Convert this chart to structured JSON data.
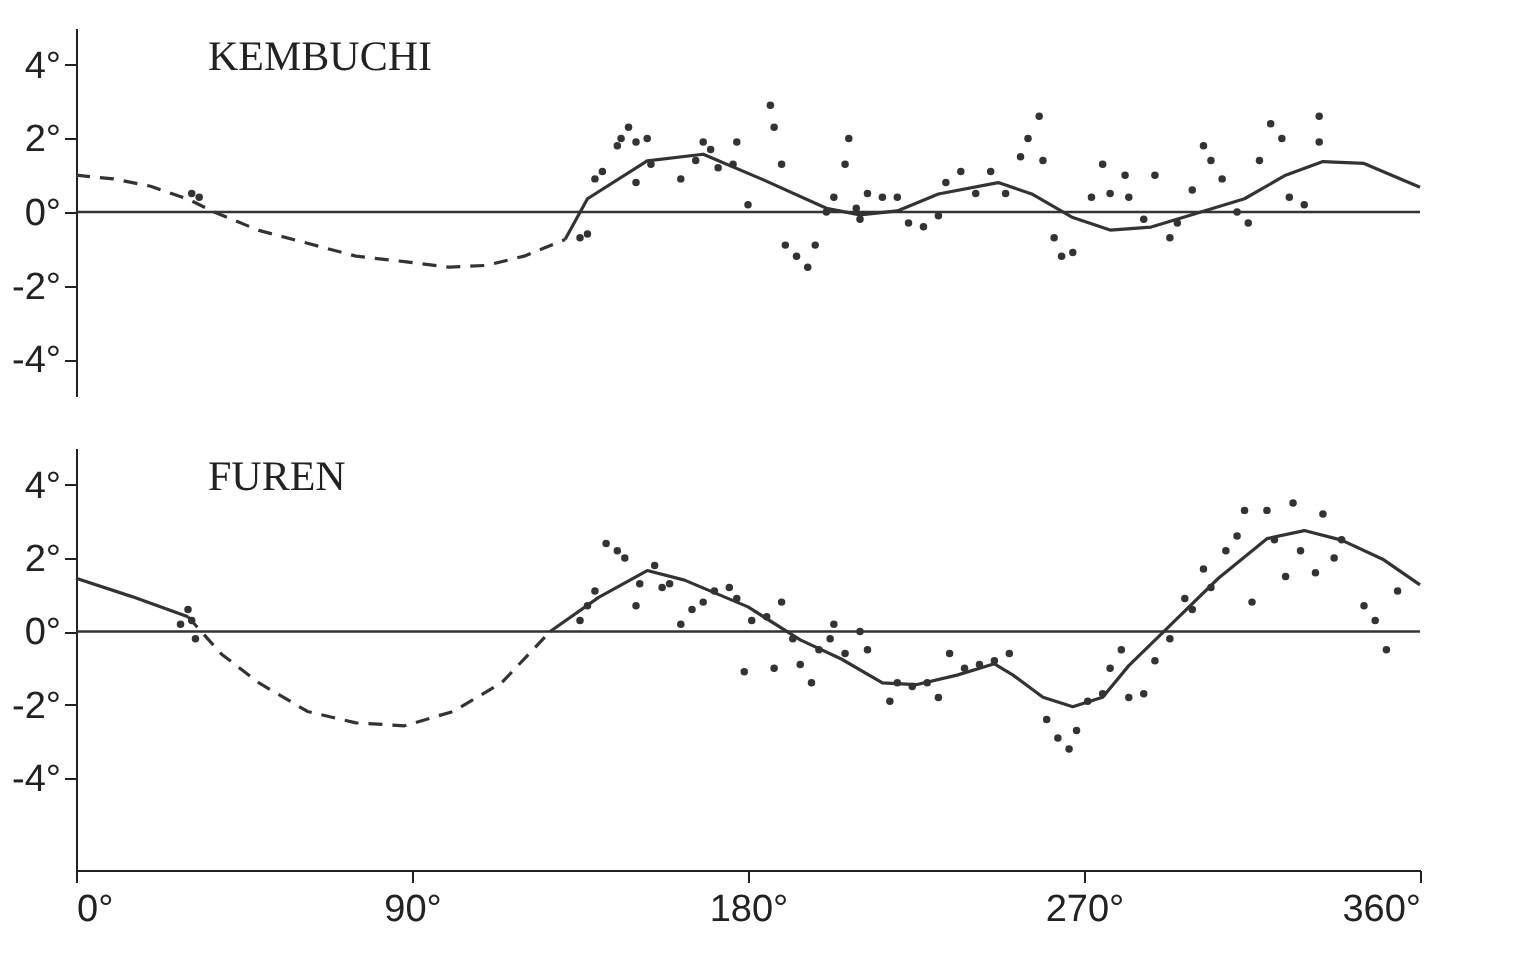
{
  "chart_data": [
    {
      "type": "line",
      "title": "KEMBUCHI",
      "xlim": [
        0,
        360
      ],
      "ylim": [
        -5,
        5
      ],
      "yticks": [
        {
          "value": 4,
          "label": "4°"
        },
        {
          "value": 2,
          "label": "2°"
        },
        {
          "value": 0,
          "label": "0°"
        },
        {
          "value": -2,
          "label": "-2°"
        },
        {
          "value": -4,
          "label": "-4°"
        }
      ],
      "tick_labels": "y",
      "grid": false,
      "ref_lines": [
        {
          "axis": "y",
          "value": 0,
          "color": "#333333"
        }
      ],
      "series": [
        {
          "type": "line",
          "line_style": "dashed",
          "color": "#333333",
          "x": [
            0,
            10,
            20,
            30,
            37,
            49,
            62,
            75,
            88,
            100,
            110,
            120,
            131
          ],
          "values": [
            1.0,
            0.9,
            0.7,
            0.35,
            0,
            -0.5,
            -0.85,
            -1.2,
            -1.35,
            -1.5,
            -1.45,
            -1.2,
            -0.75
          ]
        },
        {
          "type": "line",
          "line_style": "solid",
          "color": "#333333",
          "x": [
            131,
            137,
            153,
            168,
            184,
            201,
            210,
            220,
            231,
            247,
            256,
            267,
            277,
            288,
            298,
            313,
            324,
            334,
            345,
            360
          ],
          "values": [
            -0.75,
            0.36,
            1.39,
            1.57,
            0.88,
            0.1,
            -0.08,
            0.03,
            0.49,
            0.8,
            0.49,
            -0.15,
            -0.49,
            -0.41,
            -0.1,
            0.36,
            1.0,
            1.37,
            1.32,
            0.67
          ]
        },
        {
          "type": "scatter",
          "marker": "circle",
          "color": "#333333",
          "x": [
            31,
            33,
            135,
            137,
            139,
            141,
            145,
            146,
            148,
            150,
            153,
            150,
            154,
            162,
            166,
            168,
            170,
            172,
            176,
            177,
            180,
            186,
            187,
            189,
            190,
            193,
            196,
            198,
            201,
            203,
            206,
            207,
            209,
            210,
            212,
            216,
            220,
            223,
            227,
            231,
            233,
            237,
            241,
            245,
            249,
            253,
            255,
            258,
            259,
            262,
            264,
            267,
            272,
            275,
            277,
            281,
            282,
            286,
            289,
            293,
            295,
            299,
            302,
            304,
            307,
            311,
            314,
            317,
            320,
            323,
            325,
            329,
            333,
            333
          ],
          "values": [
            0.5,
            0.4,
            -0.7,
            -0.6,
            0.9,
            1.1,
            1.8,
            2.0,
            2.3,
            1.9,
            2.0,
            0.8,
            1.3,
            0.9,
            1.4,
            1.9,
            1.7,
            1.2,
            1.3,
            1.9,
            0.2,
            2.9,
            2.3,
            1.3,
            -0.9,
            -1.2,
            -1.5,
            -0.9,
            0.0,
            0.4,
            1.3,
            2.0,
            0.1,
            -0.2,
            0.5,
            0.4,
            0.4,
            -0.3,
            -0.4,
            -0.1,
            0.8,
            1.1,
            0.5,
            1.1,
            0.5,
            1.5,
            2.0,
            2.6,
            1.4,
            -0.7,
            -1.2,
            -1.1,
            0.4,
            1.3,
            0.5,
            1.0,
            0.4,
            -0.2,
            1.0,
            -0.7,
            -0.3,
            0.6,
            1.8,
            1.4,
            0.9,
            0.0,
            -0.3,
            1.4,
            2.4,
            2.0,
            0.4,
            0.2,
            2.6,
            1.9
          ]
        }
      ]
    },
    {
      "type": "line",
      "title": "FUREN",
      "xlim": [
        0,
        360
      ],
      "ylim": [
        -6.5,
        5
      ],
      "xticks": [
        {
          "value": 0,
          "label": "0°"
        },
        {
          "value": 90,
          "label": "90°"
        },
        {
          "value": 180,
          "label": "180°"
        },
        {
          "value": 270,
          "label": "270°"
        },
        {
          "value": 360,
          "label": "360°"
        }
      ],
      "yticks": [
        {
          "value": 4,
          "label": "4°"
        },
        {
          "value": 2,
          "label": "2°"
        },
        {
          "value": 0,
          "label": "0°"
        },
        {
          "value": -2,
          "label": "-2°"
        },
        {
          "value": -4,
          "label": "-4°"
        }
      ],
      "grid": false,
      "ref_lines": [
        {
          "axis": "y",
          "value": 0,
          "color": "#333333"
        }
      ],
      "series": [
        {
          "type": "line",
          "line_style": "solid",
          "color": "#333333",
          "x": [
            0,
            15,
            30
          ],
          "values": [
            1.45,
            0.95,
            0.4
          ]
        },
        {
          "type": "line",
          "line_style": "dashed",
          "color": "#333333",
          "x": [
            30,
            39,
            49,
            62,
            75,
            88,
            101,
            114,
            127
          ],
          "values": [
            0.4,
            -0.62,
            -1.4,
            -2.18,
            -2.49,
            -2.57,
            -2.18,
            -1.4,
            0
          ]
        },
        {
          "type": "line",
          "line_style": "solid",
          "color": "#333333",
          "x": [
            127,
            140,
            153,
            163,
            180,
            194,
            205,
            216,
            225,
            236,
            246,
            251,
            259,
            267,
            275,
            282,
            293,
            306,
            319,
            329,
            339,
            350,
            360
          ],
          "values": [
            0,
            0.93,
            1.66,
            1.4,
            0.67,
            -0.23,
            -0.75,
            -1.4,
            -1.45,
            -1.19,
            -0.88,
            -1.19,
            -1.79,
            -2.05,
            -1.79,
            -0.93,
            0.16,
            1.45,
            2.53,
            2.75,
            2.49,
            1.97,
            1.27
          ]
        },
        {
          "type": "scatter",
          "marker": "circle",
          "color": "#333333",
          "x": [
            28,
            30,
            31,
            32,
            135,
            137,
            139,
            142,
            145,
            147,
            150,
            151,
            155,
            157,
            159,
            162,
            165,
            168,
            171,
            175,
            177,
            179,
            181,
            185,
            187,
            189,
            192,
            194,
            197,
            199,
            202,
            203,
            206,
            210,
            212,
            218,
            220,
            224,
            228,
            231,
            234,
            238,
            242,
            246,
            250,
            260,
            263,
            266,
            268,
            271,
            275,
            277,
            280,
            282,
            286,
            289,
            293,
            297,
            299,
            302,
            304,
            308,
            311,
            313,
            315,
            319,
            321,
            324,
            326,
            328,
            332,
            334,
            337,
            339,
            345,
            348,
            351,
            354
          ],
          "values": [
            0.2,
            0.6,
            0.3,
            -0.2,
            0.3,
            0.7,
            1.1,
            2.4,
            2.2,
            2.0,
            0.7,
            1.3,
            1.8,
            1.2,
            1.3,
            0.2,
            0.6,
            0.8,
            1.1,
            1.2,
            0.9,
            -1.1,
            0.3,
            0.4,
            -1.0,
            0.8,
            -0.2,
            -0.9,
            -1.4,
            -0.5,
            -0.2,
            0.2,
            -0.6,
            0.0,
            -0.5,
            -1.9,
            -1.4,
            -1.5,
            -1.4,
            -1.8,
            -0.6,
            -1.0,
            -0.9,
            -0.8,
            -0.6,
            -2.4,
            -2.9,
            -3.2,
            -2.7,
            -1.9,
            -1.7,
            -1.0,
            -0.5,
            -1.8,
            -1.7,
            -0.8,
            -0.2,
            0.9,
            0.6,
            1.7,
            1.2,
            2.2,
            2.6,
            3.3,
            0.8,
            3.3,
            2.5,
            1.5,
            3.5,
            2.2,
            1.6,
            3.2,
            2.0,
            2.5,
            0.7,
            0.3,
            -0.5,
            1.1
          ]
        }
      ]
    }
  ]
}
